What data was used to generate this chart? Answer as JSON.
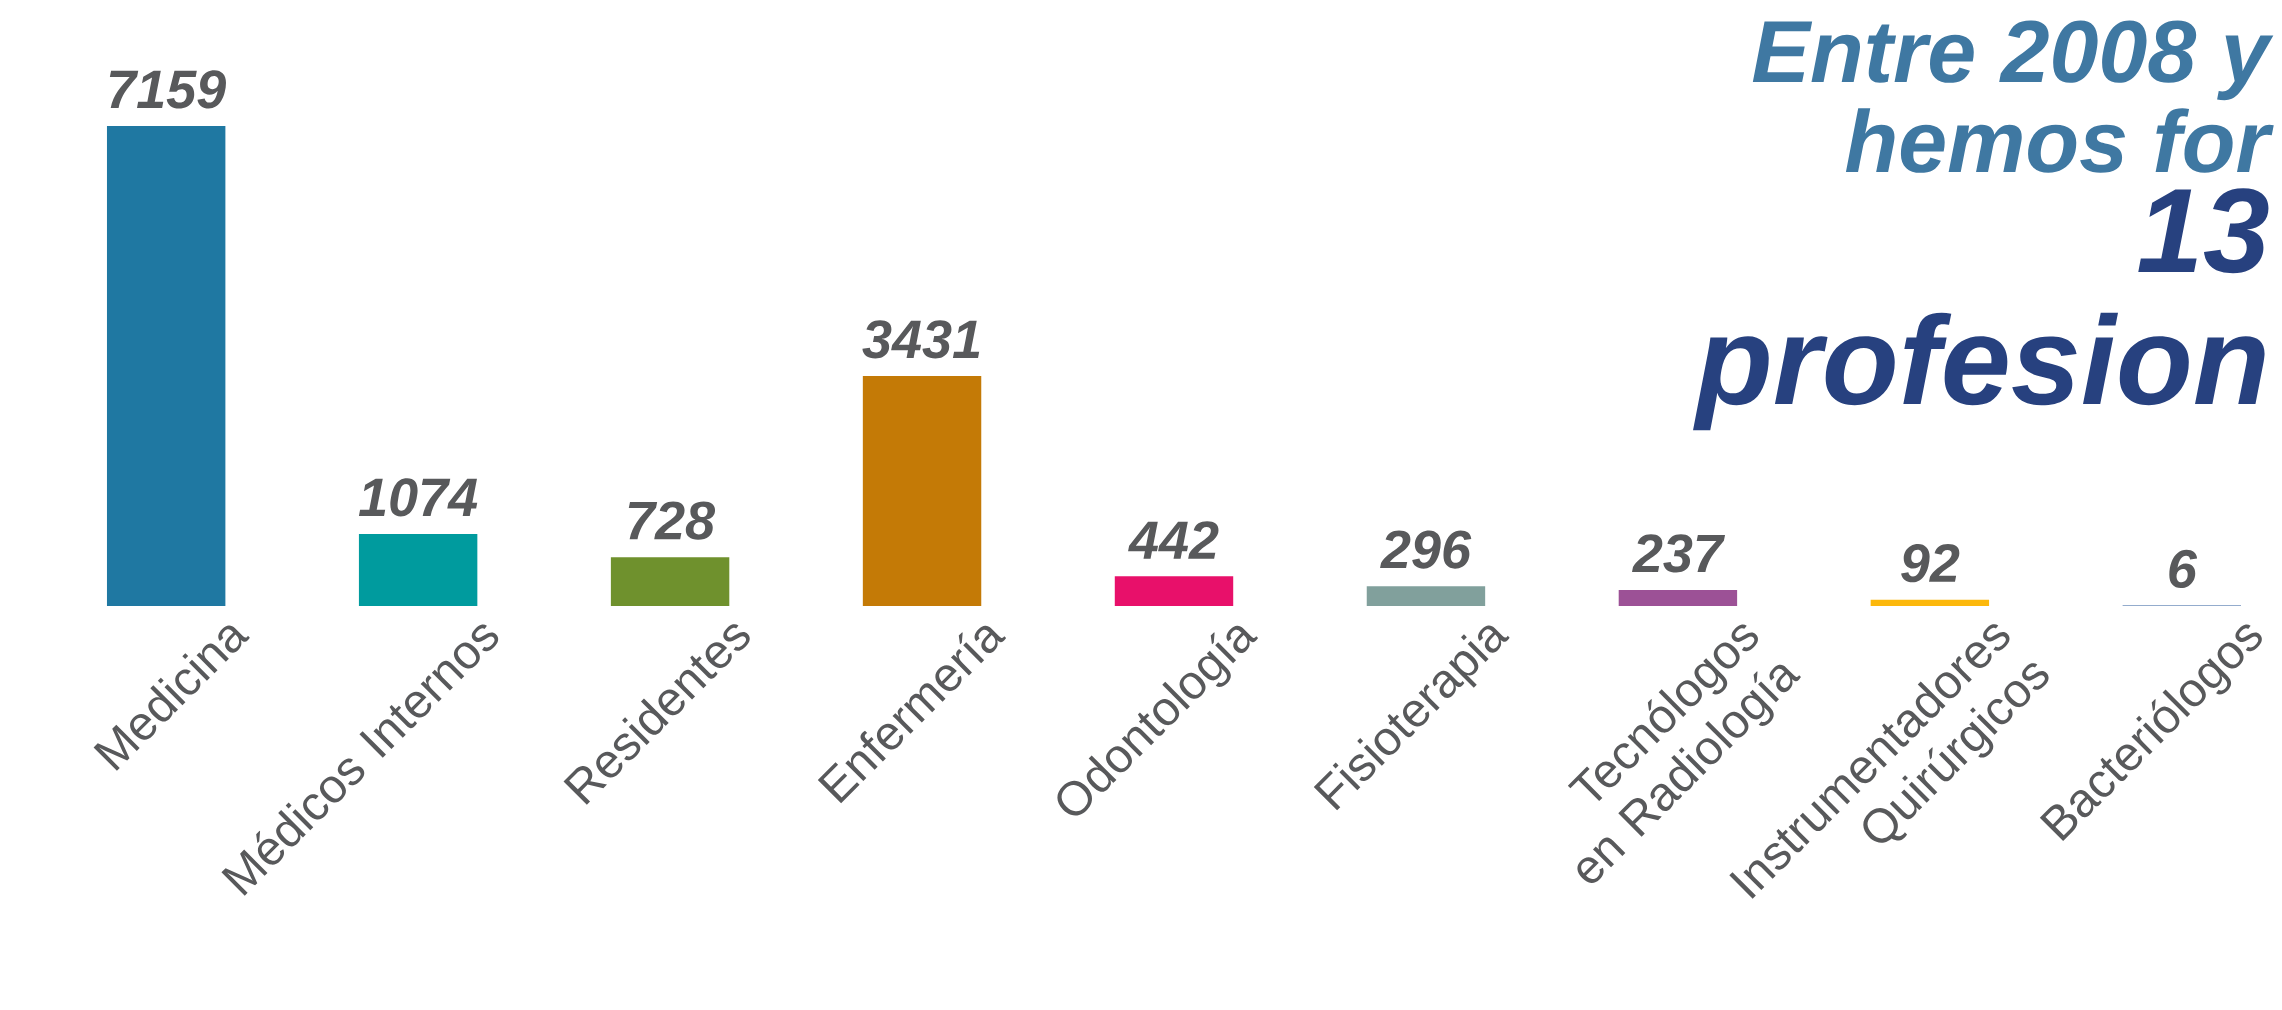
{
  "chart_data": {
    "type": "bar",
    "categories": [
      "Medicina",
      "Médicos Internos",
      "Residentes",
      "Enfermería",
      "Odontología",
      "Fisioterapia",
      "Tecnólogos en Radiología",
      "Instrumentadores Quirúrgicos",
      "Bacteriólogos"
    ],
    "values": [
      7159,
      1074,
      728,
      3431,
      442,
      296,
      237,
      92,
      6
    ],
    "colors": [
      "#1f78a2",
      "#009b9e",
      "#6f912d",
      "#c47a06",
      "#e8106a",
      "#81a09c",
      "#9c5196",
      "#fcb80c",
      "#2a5b9c"
    ],
    "data_labels": true,
    "tick_labels": "x",
    "annotations": [
      "Entre 2008 y",
      "hemos for",
      "13",
      "profesion"
    ]
  }
}
